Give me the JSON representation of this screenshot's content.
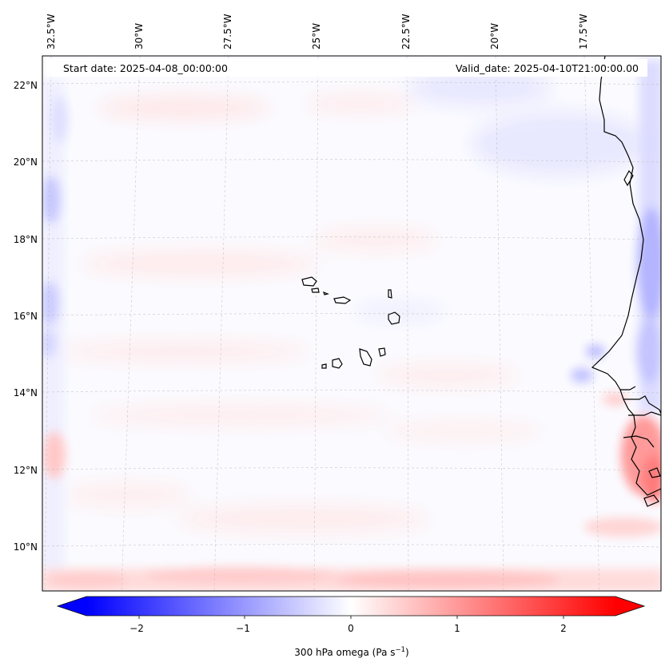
{
  "title_left": "Start date: 2025-04-08_00:00:00",
  "title_right": "Valid_date: 2025-04-10T21:00:00.00",
  "colorbar": {
    "label_main": "300 hPa omega (Pa s",
    "label_exp": "−1",
    "label_close": ")",
    "ticks": [
      "−2",
      "−1",
      "0",
      "1",
      "2"
    ],
    "vmin": -2.5,
    "vmax": 2.5,
    "neg_color": "#0000ff",
    "zero_color": "#ffffff",
    "pos_color": "#ff0000"
  },
  "map": {
    "lon_labels": [
      "32.5°W",
      "30°W",
      "27.5°W",
      "25°W",
      "22.5°W",
      "20°W",
      "17.5°W"
    ],
    "lat_labels": [
      "22°N",
      "20°N",
      "18°N",
      "16°N",
      "14°N",
      "12°N",
      "10°N"
    ],
    "coastline_color": "#000000",
    "gridline_color": "#bbbbbb"
  },
  "chart_data": {
    "type": "heatmap",
    "title_left": "Start date: 2025-04-08_00:00:00",
    "title_right": "Valid_date: 2025-04-10T21:00:00.00",
    "variable": "300 hPa omega",
    "units": "Pa s−1",
    "lon_range": [
      -33,
      -15.5
    ],
    "lat_range": [
      9,
      22.6
    ],
    "colorbar_ticks": [
      -2,
      -1,
      0,
      1,
      2
    ],
    "colorbar_range": [
      -2.5,
      2.5
    ],
    "cmap": "bwr",
    "field_summary": "mostly near-zero values; weak positive (red) bands along bottom edge and near west African coast ~11-13N; weak negative (blue) along east edge near 16-18N and west edge"
  }
}
